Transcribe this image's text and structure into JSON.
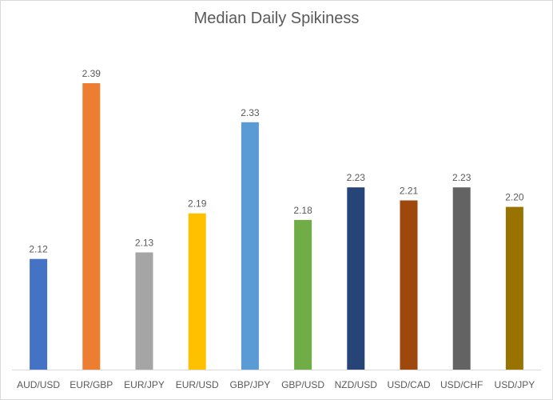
{
  "chart_data": {
    "type": "bar",
    "title": "Median Daily Spikiness",
    "xlabel": "",
    "ylabel": "",
    "categories": [
      "AUD/USD",
      "EUR/GBP",
      "EUR/JPY",
      "EUR/USD",
      "GBP/JPY",
      "GBP/USD",
      "NZD/USD",
      "USD/CAD",
      "USD/CHF",
      "USD/JPY"
    ],
    "values": [
      2.12,
      2.39,
      2.13,
      2.19,
      2.33,
      2.18,
      2.23,
      2.21,
      2.23,
      2.2
    ],
    "value_labels": [
      "2.12",
      "2.39",
      "2.13",
      "2.19",
      "2.33",
      "2.18",
      "2.23",
      "2.21",
      "2.23",
      "2.20"
    ],
    "colors": [
      "#4472c4",
      "#ed7d31",
      "#a5a5a5",
      "#ffc000",
      "#5b9bd5",
      "#70ad47",
      "#264478",
      "#9e480e",
      "#636363",
      "#997300"
    ],
    "ylim": [
      1.95,
      2.39
    ],
    "grid": false,
    "legend": "none"
  }
}
